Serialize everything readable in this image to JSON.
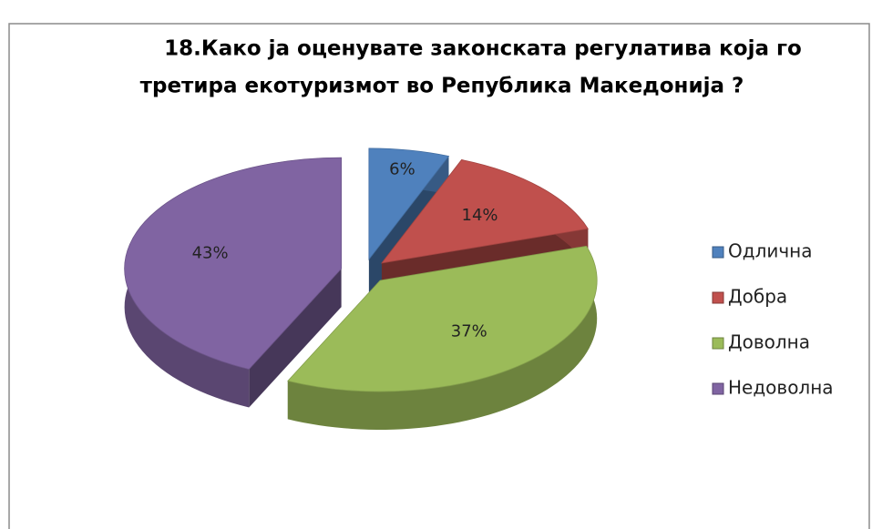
{
  "chart_data": {
    "type": "pie3d",
    "title": [
      "18.Како ја оценувате законската регулатива која го",
      "третира екотуризмот во Република Македонија ?"
    ],
    "categories": [
      "Одлична",
      "Добра",
      "Доволна",
      "Недоволна"
    ],
    "values": [
      6,
      14,
      37,
      43
    ],
    "value_labels": [
      "6%",
      "14%",
      "37%",
      "43%"
    ],
    "colors": [
      "#4f81bd",
      "#c0504d",
      "#9bbb59",
      "#8064a2"
    ],
    "legend": "right"
  }
}
